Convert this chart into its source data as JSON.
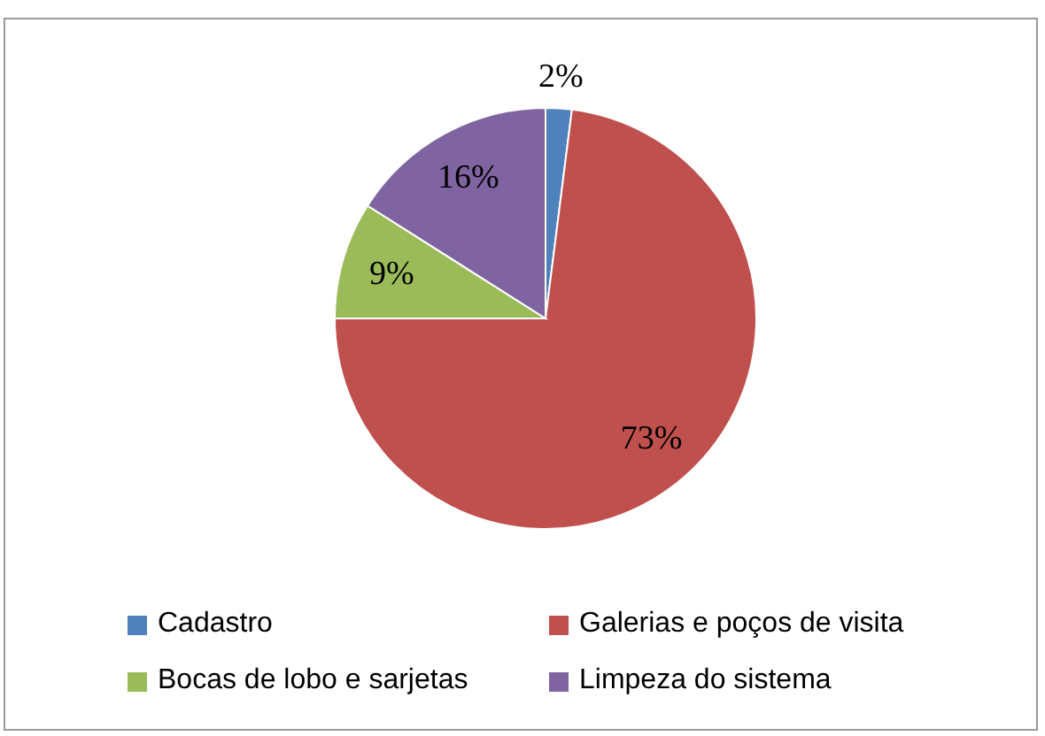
{
  "chart_data": {
    "type": "pie",
    "categories": [
      "Cadastro",
      "Galerias e poços de visita",
      "Bocas de lobo e sarjetas",
      "Limpeza do sistema"
    ],
    "values": [
      2,
      73,
      9,
      16
    ],
    "colors": [
      "#4f81bd",
      "#c0504d",
      "#9bbb59",
      "#8064a2"
    ],
    "value_labels": [
      "2%",
      "73%",
      "9%",
      "16%"
    ],
    "legend": "bottom"
  }
}
